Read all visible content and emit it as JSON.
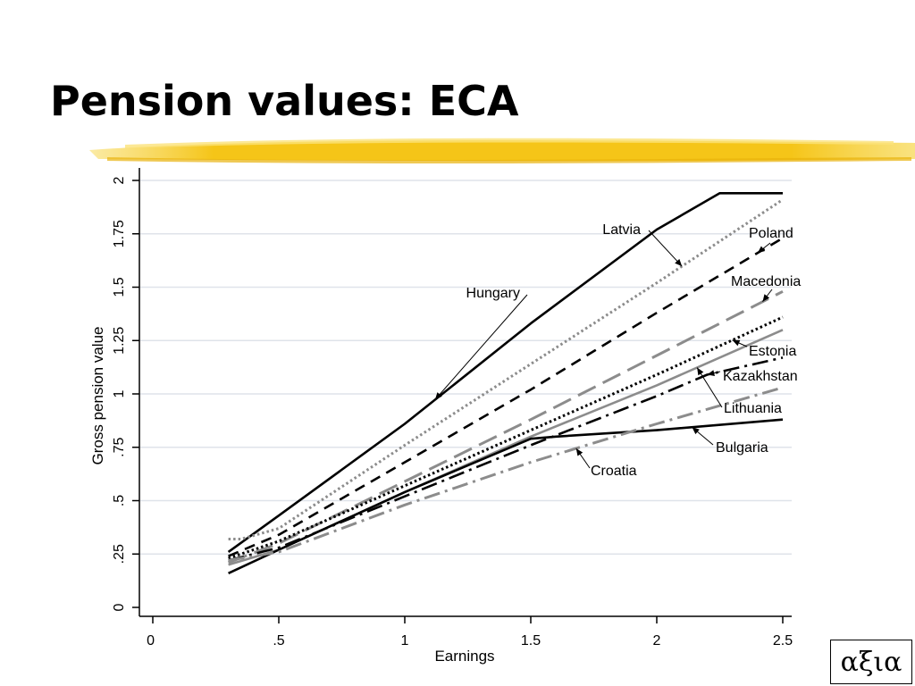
{
  "slide": {
    "title": "Pension values: ECA",
    "logo_text": "αξια",
    "highlight_color": "#f5c518"
  },
  "chart_data": {
    "type": "line",
    "xlabel": "Earnings",
    "ylabel": "Gross pension value",
    "xlim": [
      0,
      2.5
    ],
    "ylim": [
      0,
      2
    ],
    "xticks": [
      "0",
      ".5",
      "1",
      "1.5",
      "2",
      "2.5"
    ],
    "yticks": [
      "0",
      ".25",
      ".5",
      ".75",
      "1",
      "1.25",
      "1.5",
      "1.75",
      "2"
    ],
    "grid": "horizontal",
    "legend": "inline labels with arrows",
    "series": [
      {
        "name": "Hungary",
        "color": "#000000",
        "dash": "solid",
        "width": 2.6,
        "x": [
          0.3,
          0.5,
          1.0,
          1.5,
          2.0,
          2.25,
          2.5
        ],
        "y": [
          0.26,
          0.43,
          0.86,
          1.33,
          1.77,
          1.94,
          1.94
        ]
      },
      {
        "name": "Latvia",
        "color": "#8c8c8c",
        "dash": "dotted",
        "width": 3,
        "x": [
          0.3,
          0.35,
          0.5,
          1.0,
          1.5,
          2.0,
          2.5
        ],
        "y": [
          0.32,
          0.32,
          0.37,
          0.76,
          1.14,
          1.52,
          1.91
        ]
      },
      {
        "name": "Poland",
        "color": "#000000",
        "dash": "dash",
        "width": 2.6,
        "x": [
          0.3,
          0.5,
          1.0,
          1.5,
          2.0,
          2.5
        ],
        "y": [
          0.24,
          0.34,
          0.68,
          1.02,
          1.38,
          1.73
        ]
      },
      {
        "name": "Macedonia",
        "color": "#8c8c8c",
        "dash": "longdash",
        "width": 3,
        "x": [
          0.3,
          0.5,
          1.0,
          1.5,
          2.0,
          2.5
        ],
        "y": [
          0.21,
          0.3,
          0.59,
          0.88,
          1.18,
          1.48
        ]
      },
      {
        "name": "Estonia",
        "color": "#000000",
        "dash": "dotted",
        "width": 3,
        "x": [
          0.3,
          0.5,
          1.0,
          1.5,
          2.0,
          2.5
        ],
        "y": [
          0.23,
          0.31,
          0.57,
          0.83,
          1.09,
          1.36
        ]
      },
      {
        "name": "Kazakhstan",
        "color": "#000000",
        "dash": "dashdot",
        "width": 2.6,
        "x": [
          0.3,
          0.5,
          1.0,
          1.5,
          2.0,
          2.2,
          2.5
        ],
        "y": [
          0.22,
          0.28,
          0.52,
          0.76,
          0.99,
          1.09,
          1.17
        ]
      },
      {
        "name": "Lithuania",
        "color": "#8c8c8c",
        "dash": "solid",
        "width": 2.6,
        "x": [
          0.3,
          0.5,
          1.0,
          1.5,
          2.0,
          2.5
        ],
        "y": [
          0.2,
          0.27,
          0.54,
          0.8,
          1.04,
          1.3
        ]
      },
      {
        "name": "Bulgaria",
        "color": "#000000",
        "dash": "solid",
        "width": 2.6,
        "x": [
          0.3,
          0.5,
          1.0,
          1.5,
          1.6,
          2.0,
          2.5
        ],
        "y": [
          0.16,
          0.27,
          0.54,
          0.79,
          0.8,
          0.83,
          0.88
        ]
      },
      {
        "name": "Croatia",
        "color": "#8c8c8c",
        "dash": "dashdot",
        "width": 3,
        "x": [
          0.3,
          0.5,
          1.0,
          1.5,
          2.0,
          2.5
        ],
        "y": [
          0.22,
          0.26,
          0.48,
          0.68,
          0.86,
          1.03
        ]
      }
    ],
    "labels": [
      {
        "series": "Hungary",
        "text": "Hungary",
        "anchor": "end"
      },
      {
        "series": "Latvia",
        "text": "Latvia",
        "anchor": "end"
      },
      {
        "series": "Poland",
        "text": "Poland",
        "anchor": "start"
      },
      {
        "series": "Macedonia",
        "text": "Macedonia",
        "anchor": "start"
      },
      {
        "series": "Estonia",
        "text": "Estonia",
        "anchor": "start"
      },
      {
        "series": "Kazakhstan",
        "text": "Kazakhstan",
        "anchor": "start"
      },
      {
        "series": "Lithuania",
        "text": "Lithuania",
        "anchor": "start"
      },
      {
        "series": "Bulgaria",
        "text": "Bulgaria",
        "anchor": "start"
      },
      {
        "series": "Croatia",
        "text": "Croatia",
        "anchor": "start"
      }
    ]
  }
}
